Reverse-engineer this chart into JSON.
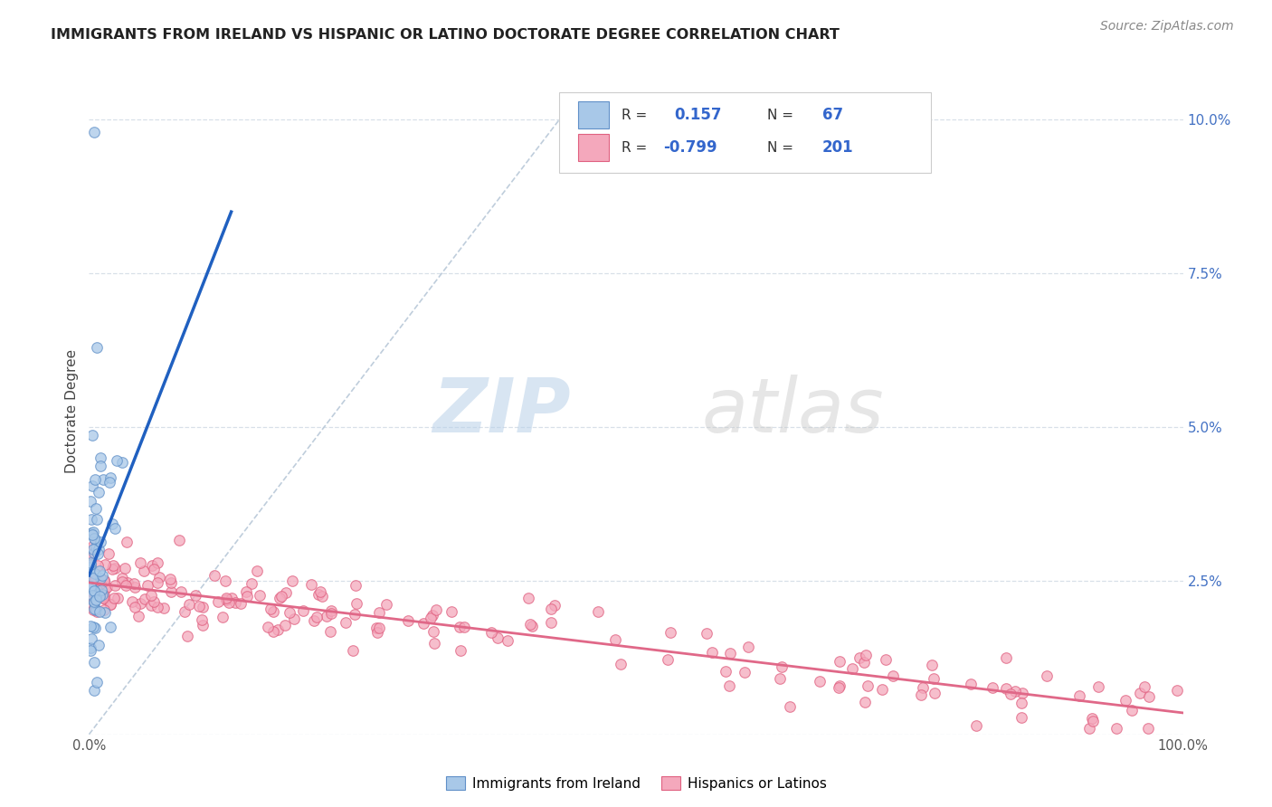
{
  "title": "IMMIGRANTS FROM IRELAND VS HISPANIC OR LATINO DOCTORATE DEGREE CORRELATION CHART",
  "source": "Source: ZipAtlas.com",
  "ylabel": "Doctorate Degree",
  "legend_label1": "Immigrants from Ireland",
  "legend_label2": "Hispanics or Latinos",
  "R1": 0.157,
  "N1": 67,
  "R2": -0.799,
  "N2": 201,
  "color_blue": "#A8C8E8",
  "color_pink": "#F4A8BC",
  "edge_color_blue": "#6090C8",
  "edge_color_pink": "#E06080",
  "line_color_blue": "#2060C0",
  "line_color_pink": "#E06888",
  "dashed_line_color": "#B8C8D8",
  "background_color": "#FFFFFF",
  "grid_color": "#D8E0E8",
  "right_tick_color": "#4472C4",
  "xlim": [
    0.0,
    1.0
  ],
  "ylim": [
    0.0,
    0.105
  ],
  "ytick_vals": [
    0.0,
    0.025,
    0.05,
    0.075,
    0.1
  ],
  "ytick_labels": [
    "",
    "2.5%",
    "5.0%",
    "7.5%",
    "10.0%"
  ],
  "watermark_zip": "ZIP",
  "watermark_atlas": "atlas",
  "title_fontsize": 11.5,
  "source_fontsize": 10
}
